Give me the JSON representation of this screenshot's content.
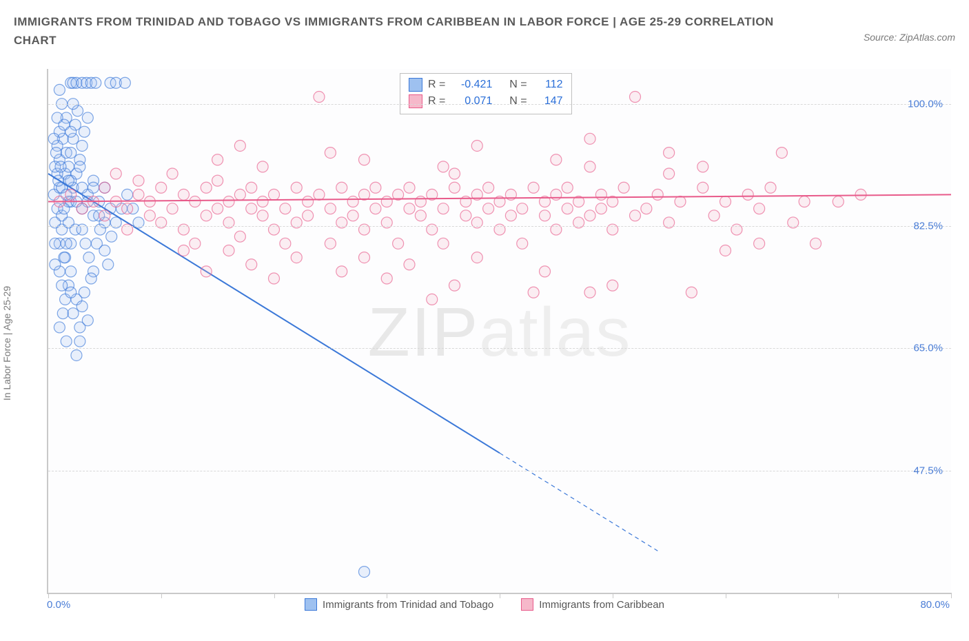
{
  "title": "IMMIGRANTS FROM TRINIDAD AND TOBAGO VS IMMIGRANTS FROM CARIBBEAN IN LABOR FORCE | AGE 25-29 CORRELATION CHART",
  "source": "Source: ZipAtlas.com",
  "y_axis_label": "In Labor Force | Age 25-29",
  "watermark_a": "ZIP",
  "watermark_b": "atlas",
  "chart": {
    "type": "scatter",
    "background_color": "#fdfdfe",
    "axis_color": "#c9c9c9",
    "grid_color": "#d8d8d8",
    "tick_label_color": "#4a7dd6",
    "x_min": 0.0,
    "x_max": 80.0,
    "x_min_label": "0.0%",
    "x_max_label": "80.0%",
    "x_ticks": [
      0,
      10,
      20,
      30,
      40,
      50,
      60,
      70,
      80
    ],
    "y_min": 30.0,
    "y_max": 105.0,
    "y_ticks": [
      {
        "v": 100.0,
        "label": "100.0%"
      },
      {
        "v": 82.5,
        "label": "82.5%"
      },
      {
        "v": 65.0,
        "label": "65.0%"
      },
      {
        "v": 47.5,
        "label": "47.5%"
      }
    ],
    "marker_radius": 8,
    "marker_stroke_width": 1.2,
    "marker_fill_opacity": 0.22,
    "trend_line_width": 2,
    "series": [
      {
        "id": "trinidad",
        "label": "Immigrants from Trinidad and Tobago",
        "color": "#3b78d8",
        "fill": "#9ec1f0",
        "R": "-0.421",
        "N": "112",
        "trend": {
          "x1": 0,
          "y1": 90,
          "solid_end_x": 40,
          "solid_end_y": 50,
          "x2": 54,
          "y2": 36
        },
        "points": [
          [
            0.5,
            87
          ],
          [
            0.8,
            85
          ],
          [
            1.0,
            88
          ],
          [
            1.2,
            84
          ],
          [
            1.0,
            92
          ],
          [
            1.5,
            90
          ],
          [
            1.3,
            95
          ],
          [
            1.6,
            98
          ],
          [
            2.0,
            103
          ],
          [
            2.2,
            103
          ],
          [
            2.5,
            103
          ],
          [
            3.0,
            103
          ],
          [
            3.4,
            103
          ],
          [
            3.8,
            103
          ],
          [
            4.2,
            103
          ],
          [
            5.5,
            103
          ],
          [
            6.0,
            103
          ],
          [
            6.8,
            103
          ],
          [
            1.0,
            80
          ],
          [
            1.2,
            82
          ],
          [
            1.5,
            78
          ],
          [
            1.0,
            76
          ],
          [
            1.8,
            83
          ],
          [
            2.0,
            86
          ],
          [
            2.2,
            88
          ],
          [
            2.5,
            90
          ],
          [
            2.8,
            92
          ],
          [
            3.0,
            94
          ],
          [
            3.2,
            96
          ],
          [
            3.5,
            98
          ],
          [
            3.0,
            85
          ],
          [
            3.5,
            87
          ],
          [
            4.0,
            89
          ],
          [
            4.0,
            84
          ],
          [
            4.5,
            86
          ],
          [
            5.0,
            88
          ],
          [
            5.0,
            83
          ],
          [
            5.5,
            85
          ],
          [
            1.5,
            72
          ],
          [
            1.8,
            74
          ],
          [
            2.0,
            76
          ],
          [
            2.2,
            70
          ],
          [
            2.5,
            72
          ],
          [
            2.8,
            68
          ],
          [
            2.0,
            80
          ],
          [
            2.4,
            82
          ],
          [
            0.8,
            90
          ],
          [
            0.8,
            94
          ],
          [
            1.0,
            96
          ],
          [
            1.2,
            100
          ],
          [
            1.4,
            97
          ],
          [
            1.6,
            93
          ],
          [
            1.8,
            91
          ],
          [
            2.0,
            93
          ],
          [
            2.2,
            95
          ],
          [
            2.4,
            97
          ],
          [
            2.6,
            99
          ],
          [
            2.8,
            91
          ],
          [
            3.0,
            82
          ],
          [
            3.3,
            80
          ],
          [
            3.6,
            78
          ],
          [
            4.0,
            76
          ],
          [
            4.3,
            80
          ],
          [
            4.6,
            82
          ],
          [
            5.0,
            79
          ],
          [
            5.3,
            77
          ],
          [
            5.6,
            81
          ],
          [
            6.0,
            83
          ],
          [
            6.5,
            85
          ],
          [
            7.0,
            87
          ],
          [
            7.5,
            85
          ],
          [
            8.0,
            83
          ],
          [
            1.0,
            68
          ],
          [
            1.3,
            70
          ],
          [
            1.6,
            66
          ],
          [
            2.0,
            73
          ],
          [
            1.2,
            74
          ],
          [
            1.4,
            78
          ],
          [
            1.6,
            80
          ],
          [
            1.8,
            86
          ],
          [
            2.0,
            89
          ],
          [
            0.6,
            83
          ],
          [
            0.6,
            80
          ],
          [
            0.6,
            77
          ],
          [
            0.6,
            91
          ],
          [
            0.8,
            98
          ],
          [
            1.0,
            102
          ],
          [
            1.2,
            88
          ],
          [
            1.4,
            85
          ],
          [
            1.6,
            87
          ],
          [
            1.8,
            89
          ],
          [
            2.0,
            96
          ],
          [
            2.2,
            100
          ],
          [
            2.5,
            86
          ],
          [
            3.0,
            88
          ],
          [
            3.5,
            86
          ],
          [
            4.0,
            88
          ],
          [
            4.5,
            84
          ],
          [
            2.5,
            64
          ],
          [
            2.8,
            66
          ],
          [
            3.0,
            71
          ],
          [
            3.2,
            73
          ],
          [
            3.5,
            69
          ],
          [
            3.8,
            75
          ],
          [
            0.5,
            95
          ],
          [
            0.7,
            93
          ],
          [
            0.9,
            89
          ],
          [
            1.1,
            91
          ],
          [
            28,
            33
          ]
        ]
      },
      {
        "id": "caribbean",
        "label": "Immigrants from Caribbean",
        "color": "#e85a8a",
        "fill": "#f6b8ca",
        "R": "0.071",
        "N": "147",
        "trend": {
          "x1": 0,
          "y1": 86.0,
          "solid_end_x": 80,
          "solid_end_y": 87.0,
          "x2": 80,
          "y2": 87.0
        },
        "points": [
          [
            1,
            86
          ],
          [
            2,
            87
          ],
          [
            3,
            85
          ],
          [
            4,
            86
          ],
          [
            5,
            88
          ],
          [
            5,
            84
          ],
          [
            6,
            86
          ],
          [
            6,
            90
          ],
          [
            7,
            85
          ],
          [
            7,
            82
          ],
          [
            8,
            87
          ],
          [
            8,
            89
          ],
          [
            9,
            84
          ],
          [
            9,
            86
          ],
          [
            10,
            88
          ],
          [
            10,
            83
          ],
          [
            11,
            85
          ],
          [
            11,
            90
          ],
          [
            12,
            82
          ],
          [
            12,
            87
          ],
          [
            13,
            86
          ],
          [
            13,
            80
          ],
          [
            14,
            88
          ],
          [
            14,
            84
          ],
          [
            15,
            85
          ],
          [
            15,
            89
          ],
          [
            16,
            83
          ],
          [
            16,
            86
          ],
          [
            17,
            87
          ],
          [
            17,
            81
          ],
          [
            18,
            85
          ],
          [
            18,
            88
          ],
          [
            19,
            84
          ],
          [
            19,
            86
          ],
          [
            20,
            82
          ],
          [
            20,
            87
          ],
          [
            21,
            85
          ],
          [
            21,
            80
          ],
          [
            22,
            88
          ],
          [
            22,
            83
          ],
          [
            23,
            86
          ],
          [
            23,
            84
          ],
          [
            24,
            87
          ],
          [
            24,
            101
          ],
          [
            25,
            85
          ],
          [
            25,
            80
          ],
          [
            26,
            88
          ],
          [
            26,
            83
          ],
          [
            27,
            86
          ],
          [
            27,
            84
          ],
          [
            28,
            82
          ],
          [
            28,
            87
          ],
          [
            29,
            85
          ],
          [
            29,
            88
          ],
          [
            30,
            83
          ],
          [
            30,
            86
          ],
          [
            31,
            80
          ],
          [
            31,
            87
          ],
          [
            32,
            85
          ],
          [
            32,
            88
          ],
          [
            33,
            84
          ],
          [
            33,
            86
          ],
          [
            34,
            82
          ],
          [
            34,
            87
          ],
          [
            35,
            85
          ],
          [
            35,
            80
          ],
          [
            36,
            88
          ],
          [
            36,
            90
          ],
          [
            37,
            84
          ],
          [
            37,
            86
          ],
          [
            38,
            87
          ],
          [
            38,
            83
          ],
          [
            39,
            85
          ],
          [
            39,
            88
          ],
          [
            40,
            82
          ],
          [
            40,
            86
          ],
          [
            41,
            84
          ],
          [
            41,
            87
          ],
          [
            42,
            85
          ],
          [
            42,
            80
          ],
          [
            43,
            88
          ],
          [
            43,
            73
          ],
          [
            44,
            86
          ],
          [
            44,
            84
          ],
          [
            45,
            87
          ],
          [
            45,
            82
          ],
          [
            46,
            85
          ],
          [
            46,
            88
          ],
          [
            47,
            83
          ],
          [
            47,
            86
          ],
          [
            48,
            91
          ],
          [
            48,
            84
          ],
          [
            49,
            85
          ],
          [
            49,
            87
          ],
          [
            50,
            82
          ],
          [
            50,
            86
          ],
          [
            51,
            88
          ],
          [
            52,
            84
          ],
          [
            52,
            101
          ],
          [
            53,
            85
          ],
          [
            54,
            87
          ],
          [
            55,
            83
          ],
          [
            56,
            86
          ],
          [
            57,
            73
          ],
          [
            58,
            88
          ],
          [
            59,
            84
          ],
          [
            60,
            86
          ],
          [
            61,
            82
          ],
          [
            62,
            87
          ],
          [
            63,
            85
          ],
          [
            64,
            88
          ],
          [
            65,
            93
          ],
          [
            66,
            83
          ],
          [
            67,
            86
          ],
          [
            48,
            73
          ],
          [
            50,
            74
          ],
          [
            44,
            76
          ],
          [
            38,
            78
          ],
          [
            36,
            74
          ],
          [
            34,
            72
          ],
          [
            32,
            77
          ],
          [
            30,
            75
          ],
          [
            28,
            78
          ],
          [
            26,
            76
          ],
          [
            22,
            78
          ],
          [
            20,
            75
          ],
          [
            18,
            77
          ],
          [
            16,
            79
          ],
          [
            14,
            76
          ],
          [
            12,
            79
          ],
          [
            15,
            92
          ],
          [
            17,
            94
          ],
          [
            19,
            91
          ],
          [
            25,
            93
          ],
          [
            35,
            91
          ],
          [
            45,
            92
          ],
          [
            55,
            90
          ],
          [
            48,
            95
          ],
          [
            38,
            94
          ],
          [
            28,
            92
          ],
          [
            68,
            80
          ],
          [
            70,
            86
          ],
          [
            72,
            87
          ],
          [
            63,
            80
          ],
          [
            60,
            79
          ],
          [
            58,
            91
          ],
          [
            55,
            93
          ]
        ]
      }
    ]
  },
  "stats_box": {
    "R_label": "R =",
    "N_label": "N ="
  }
}
